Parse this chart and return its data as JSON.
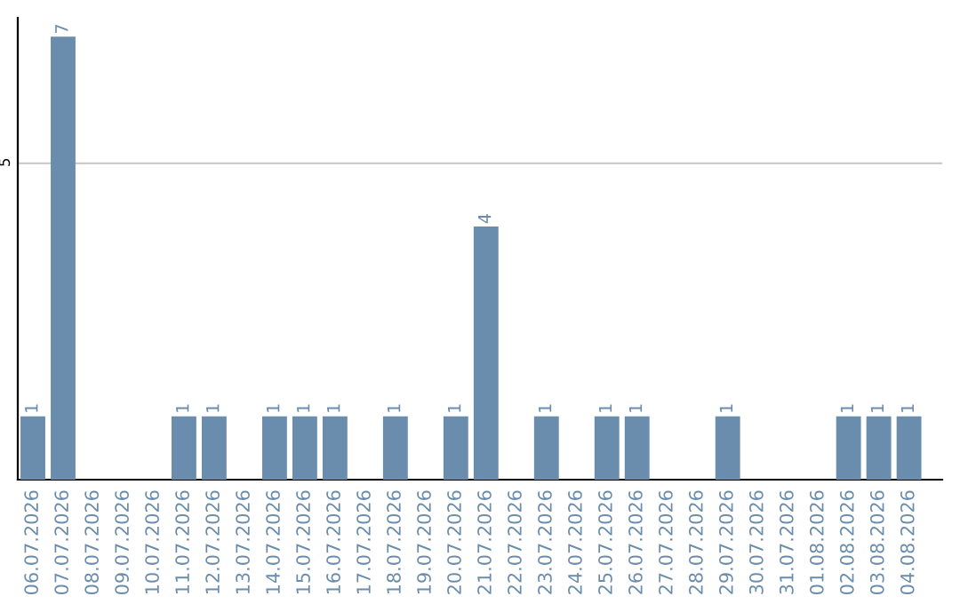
{
  "chart_data": {
    "type": "bar",
    "categories": [
      "06.07.2026",
      "07.07.2026",
      "08.07.2026",
      "09.07.2026",
      "10.07.2026",
      "11.07.2026",
      "12.07.2026",
      "13.07.2026",
      "14.07.2026",
      "15.07.2026",
      "16.07.2026",
      "17.07.2026",
      "18.07.2026",
      "19.07.2026",
      "20.07.2026",
      "21.07.2026",
      "22.07.2026",
      "23.07.2026",
      "24.07.2026",
      "25.07.2026",
      "26.07.2026",
      "27.07.2026",
      "28.07.2026",
      "29.07.2026",
      "30.07.2026",
      "31.07.2026",
      "01.08.2026",
      "02.08.2026",
      "03.08.2026",
      "04.08.2026"
    ],
    "values": [
      1,
      7,
      0,
      0,
      0,
      1,
      1,
      0,
      1,
      1,
      1,
      0,
      1,
      0,
      1,
      4,
      0,
      1,
      0,
      1,
      1,
      0,
      0,
      1,
      0,
      0,
      0,
      1,
      1,
      1
    ],
    "value_labels": [
      "1",
      "7",
      null,
      null,
      null,
      "1",
      "1",
      null,
      "1",
      "1",
      "1",
      null,
      "1",
      null,
      "1",
      "4",
      null,
      "1",
      null,
      "1",
      "1",
      null,
      null,
      "1",
      null,
      null,
      null,
      "1",
      "1",
      "1"
    ],
    "color": "#6a8cad",
    "ylim": [
      0,
      7.3
    ],
    "yticks": [
      5
    ],
    "grid": "y"
  }
}
